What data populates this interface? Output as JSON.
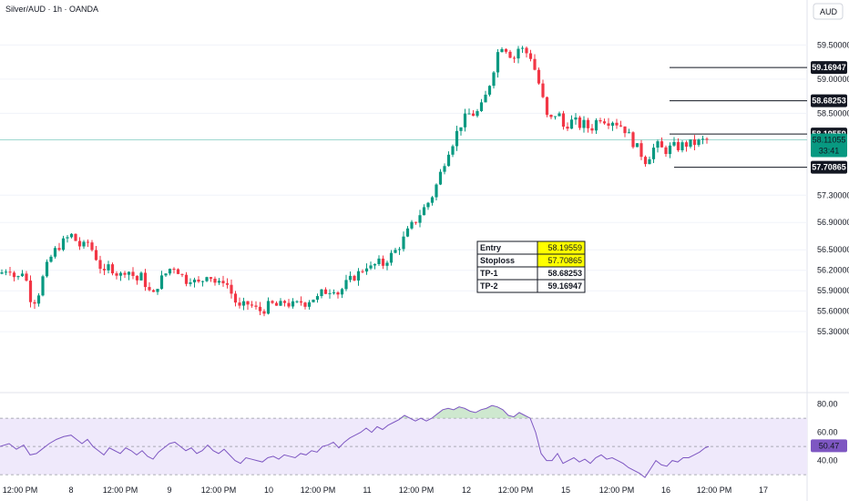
{
  "header": {
    "symbol_title": "Silver/AUD · 1h · OANDA",
    "currency_label": "AUD"
  },
  "colors": {
    "up": "#089981",
    "down": "#f23645",
    "current": "#089981",
    "rsi_line": "#7e57c2",
    "rsi_band": "#efe9fb",
    "grid": "#f0f3fa"
  },
  "chart_data": [
    {
      "type": "candlestick",
      "title": "Silver/AUD · 1h · OANDA",
      "yticks": [
        "59.50000",
        "59.00000",
        "58.50000",
        "57.30000",
        "56.90000",
        "56.50000",
        "56.20000",
        "55.90000",
        "55.60000",
        "55.30000"
      ],
      "xticks": [
        "12:00 PM",
        "8",
        "12:00 PM",
        "9",
        "12:00 PM",
        "10",
        "12:00 PM",
        "11",
        "12:00 PM",
        "12",
        "12:00 PM",
        "15",
        "12:00 PM",
        "16",
        "12:00 PM",
        "17"
      ],
      "levels": [
        {
          "name": "TP-2",
          "value": "59.16947"
        },
        {
          "name": "TP-1",
          "value": "58.68253"
        },
        {
          "name": "Entry",
          "value": "58.19559"
        },
        {
          "name": "Stoploss",
          "value": "57.70865"
        }
      ],
      "current_price": {
        "value": "58.11055",
        "countdown": "33:41"
      },
      "table": [
        {
          "label": "Entry",
          "value": "58.19559",
          "highlight": true
        },
        {
          "label": "Stoploss",
          "value": "57.70865",
          "highlight": true
        },
        {
          "label": "TP-1",
          "value": "58.68253",
          "highlight": false
        },
        {
          "label": "TP-2",
          "value": "59.16947",
          "highlight": false
        }
      ],
      "close_path": [
        [
          0,
          56.15
        ],
        [
          10,
          56.25
        ],
        [
          18,
          56.05
        ],
        [
          26,
          56.22
        ],
        [
          33,
          55.8
        ],
        [
          40,
          55.75
        ],
        [
          46,
          56.05
        ],
        [
          54,
          56.35
        ],
        [
          62,
          56.52
        ],
        [
          70,
          56.62
        ],
        [
          78,
          56.72
        ],
        [
          84,
          56.62
        ],
        [
          90,
          56.52
        ],
        [
          96,
          56.62
        ],
        [
          102,
          56.48
        ],
        [
          108,
          56.32
        ],
        [
          114,
          56.12
        ],
        [
          120,
          56.28
        ],
        [
          126,
          56.18
        ],
        [
          132,
          56.12
        ],
        [
          138,
          56.22
        ],
        [
          144,
          56.16
        ],
        [
          150,
          56.05
        ],
        [
          156,
          56.12
        ],
        [
          162,
          55.92
        ],
        [
          168,
          55.82
        ],
        [
          174,
          56.02
        ],
        [
          180,
          56.12
        ],
        [
          186,
          56.22
        ],
        [
          192,
          56.26
        ],
        [
          198,
          56.15
        ],
        [
          204,
          56.05
        ],
        [
          210,
          56.1
        ],
        [
          216,
          55.98
        ],
        [
          222,
          56.05
        ],
        [
          228,
          56.18
        ],
        [
          234,
          56.05
        ],
        [
          240,
          55.98
        ],
        [
          246,
          56.08
        ],
        [
          252,
          55.92
        ],
        [
          258,
          55.75
        ],
        [
          264,
          55.62
        ],
        [
          270,
          55.72
        ],
        [
          276,
          55.68
        ],
        [
          282,
          55.62
        ],
        [
          288,
          55.6
        ],
        [
          294,
          55.68
        ],
        [
          300,
          55.7
        ],
        [
          306,
          55.66
        ],
        [
          312,
          55.74
        ],
        [
          318,
          55.7
        ],
        [
          324,
          55.68
        ],
        [
          330,
          55.74
        ],
        [
          336,
          55.72
        ],
        [
          342,
          55.8
        ],
        [
          348,
          55.78
        ],
        [
          354,
          55.88
        ],
        [
          360,
          55.9
        ],
        [
          366,
          55.95
        ],
        [
          372,
          55.85
        ],
        [
          378,
          55.98
        ],
        [
          384,
          56.05
        ],
        [
          390,
          56.12
        ],
        [
          396,
          56.18
        ],
        [
          402,
          56.28
        ],
        [
          408,
          56.22
        ],
        [
          414,
          56.32
        ],
        [
          420,
          56.28
        ],
        [
          426,
          56.38
        ],
        [
          432,
          56.45
        ],
        [
          438,
          56.55
        ],
        [
          444,
          56.68
        ],
        [
          450,
          56.82
        ],
        [
          456,
          56.92
        ],
        [
          462,
          57.05
        ],
        [
          468,
          57.15
        ],
        [
          474,
          57.28
        ],
        [
          480,
          57.48
        ],
        [
          486,
          57.72
        ],
        [
          492,
          57.95
        ],
        [
          498,
          58.1
        ],
        [
          504,
          58.3
        ],
        [
          510,
          58.42
        ],
        [
          516,
          58.5
        ],
        [
          522,
          58.48
        ],
        [
          528,
          58.58
        ],
        [
          534,
          58.78
        ],
        [
          540,
          59.05
        ],
        [
          546,
          59.38
        ],
        [
          552,
          59.52
        ],
        [
          558,
          59.4
        ],
        [
          564,
          59.3
        ],
        [
          570,
          59.48
        ],
        [
          576,
          59.4
        ],
        [
          582,
          59.35
        ],
        [
          588,
          59.1
        ],
        [
          594,
          58.82
        ],
        [
          600,
          58.45
        ],
        [
          606,
          58.4
        ],
        [
          612,
          58.55
        ],
        [
          618,
          58.3
        ],
        [
          624,
          58.35
        ],
        [
          630,
          58.4
        ],
        [
          636,
          58.32
        ],
        [
          642,
          58.35
        ],
        [
          648,
          58.25
        ],
        [
          654,
          58.38
        ],
        [
          660,
          58.45
        ],
        [
          666,
          58.38
        ],
        [
          672,
          58.4
        ],
        [
          678,
          58.35
        ],
        [
          684,
          58.3
        ],
        [
          690,
          58.18
        ],
        [
          696,
          58.05
        ],
        [
          702,
          57.95
        ],
        [
          708,
          57.8
        ],
        [
          714,
          57.9
        ],
        [
          720,
          58.05
        ],
        [
          726,
          57.98
        ],
        [
          732,
          57.95
        ],
        [
          738,
          58.02
        ],
        [
          744,
          58.0
        ],
        [
          750,
          58.04
        ],
        [
          756,
          58.05
        ],
        [
          762,
          58.06
        ],
        [
          768,
          58.08
        ],
        [
          774,
          58.11
        ],
        [
          778,
          58.11
        ]
      ]
    },
    {
      "type": "line",
      "title": "RSI",
      "yticks": [
        "80.00",
        "60.00",
        "40.00"
      ],
      "upper_band": 70,
      "lower_band": 30,
      "current_value": "50.47",
      "values": [
        [
          0,
          50
        ],
        [
          10,
          52
        ],
        [
          18,
          48
        ],
        [
          26,
          51
        ],
        [
          33,
          44
        ],
        [
          40,
          45
        ],
        [
          46,
          48
        ],
        [
          54,
          52
        ],
        [
          62,
          55
        ],
        [
          70,
          57
        ],
        [
          78,
          58
        ],
        [
          84,
          55
        ],
        [
          90,
          52
        ],
        [
          96,
          55
        ],
        [
          102,
          50
        ],
        [
          108,
          47
        ],
        [
          114,
          44
        ],
        [
          120,
          49
        ],
        [
          126,
          47
        ],
        [
          132,
          45
        ],
        [
          138,
          49
        ],
        [
          144,
          47
        ],
        [
          150,
          44
        ],
        [
          156,
          47
        ],
        [
          162,
          43
        ],
        [
          168,
          41
        ],
        [
          174,
          46
        ],
        [
          180,
          49
        ],
        [
          186,
          52
        ],
        [
          192,
          53
        ],
        [
          198,
          50
        ],
        [
          204,
          47
        ],
        [
          210,
          49
        ],
        [
          216,
          45
        ],
        [
          222,
          47
        ],
        [
          228,
          51
        ],
        [
          234,
          47
        ],
        [
          240,
          45
        ],
        [
          246,
          48
        ],
        [
          252,
          44
        ],
        [
          258,
          40
        ],
        [
          264,
          38
        ],
        [
          270,
          42
        ],
        [
          276,
          41
        ],
        [
          282,
          40
        ],
        [
          288,
          39
        ],
        [
          294,
          42
        ],
        [
          300,
          43
        ],
        [
          306,
          41
        ],
        [
          312,
          44
        ],
        [
          318,
          43
        ],
        [
          324,
          42
        ],
        [
          330,
          45
        ],
        [
          336,
          44
        ],
        [
          342,
          47
        ],
        [
          348,
          46
        ],
        [
          354,
          50
        ],
        [
          360,
          51
        ],
        [
          366,
          53
        ],
        [
          372,
          49
        ],
        [
          378,
          53
        ],
        [
          384,
          56
        ],
        [
          390,
          58
        ],
        [
          396,
          60
        ],
        [
          402,
          63
        ],
        [
          408,
          60
        ],
        [
          414,
          64
        ],
        [
          420,
          62
        ],
        [
          426,
          65
        ],
        [
          432,
          67
        ],
        [
          438,
          69
        ],
        [
          444,
          72
        ],
        [
          450,
          70
        ],
        [
          456,
          68
        ],
        [
          462,
          70
        ],
        [
          468,
          68
        ],
        [
          474,
          70
        ],
        [
          480,
          73
        ],
        [
          486,
          76
        ],
        [
          492,
          77
        ],
        [
          498,
          76
        ],
        [
          504,
          78
        ],
        [
          510,
          77
        ],
        [
          516,
          75
        ],
        [
          522,
          74
        ],
        [
          528,
          76
        ],
        [
          534,
          77
        ],
        [
          540,
          79
        ],
        [
          546,
          78
        ],
        [
          552,
          76
        ],
        [
          558,
          72
        ],
        [
          564,
          71
        ],
        [
          570,
          74
        ],
        [
          576,
          72
        ],
        [
          582,
          70
        ],
        [
          588,
          60
        ],
        [
          594,
          45
        ],
        [
          600,
          40
        ],
        [
          606,
          40
        ],
        [
          612,
          45
        ],
        [
          618,
          38
        ],
        [
          624,
          40
        ],
        [
          630,
          42
        ],
        [
          636,
          39
        ],
        [
          642,
          41
        ],
        [
          648,
          38
        ],
        [
          654,
          42
        ],
        [
          660,
          44
        ],
        [
          666,
          41
        ],
        [
          672,
          42
        ],
        [
          678,
          40
        ],
        [
          684,
          38
        ],
        [
          690,
          35
        ],
        [
          696,
          33
        ],
        [
          702,
          31
        ],
        [
          708,
          28
        ],
        [
          714,
          34
        ],
        [
          720,
          40
        ],
        [
          726,
          37
        ],
        [
          732,
          36
        ],
        [
          738,
          40
        ],
        [
          744,
          39
        ],
        [
          750,
          42
        ],
        [
          756,
          42
        ],
        [
          762,
          44
        ],
        [
          768,
          46
        ],
        [
          774,
          49
        ],
        [
          778,
          50
        ]
      ]
    }
  ]
}
